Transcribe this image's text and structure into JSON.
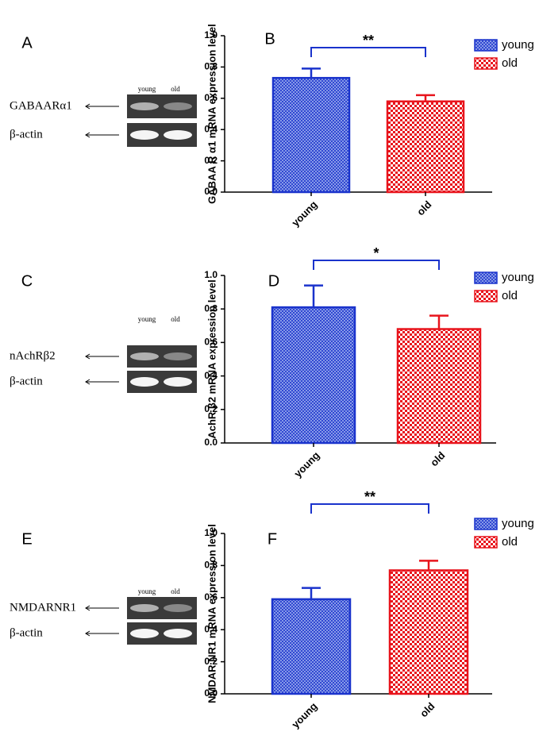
{
  "chart_data": [
    {
      "type": "bar",
      "panel": "B",
      "y_label": "GABAA R α1 mRNA expression level",
      "categories": [
        "young",
        "old"
      ],
      "values": [
        0.73,
        0.58
      ],
      "errors": [
        0.06,
        0.04
      ],
      "colors": [
        "#1a33cc",
        "#e8141c"
      ],
      "annotation": "**",
      "ylim": [
        0,
        1.0
      ],
      "yticks": [
        {
          "value": 0,
          "label": "0.0"
        },
        0.2,
        0.4,
        0.6,
        0.8,
        {
          "value": 1.0,
          "label": "1.0"
        }
      ]
    },
    {
      "type": "bar",
      "panel": "D",
      "y_label": "AchR β2 mRNA expression level",
      "categories": [
        "young",
        "old"
      ],
      "values": [
        0.81,
        0.68
      ],
      "errors": [
        0.13,
        0.08
      ],
      "colors": [
        "#1a33cc",
        "#e8141c"
      ],
      "annotation": "*",
      "ylim": [
        0,
        1.0
      ],
      "yticks": [
        {
          "value": 0,
          "label": "0.0"
        },
        0.2,
        0.4,
        0.6,
        0.8,
        {
          "value": 1.0,
          "label": "1.0"
        }
      ]
    },
    {
      "type": "bar",
      "panel": "F",
      "y_label": "NMDAR NR1 mRNA expression level",
      "categories": [
        "young",
        "old"
      ],
      "values": [
        0.59,
        0.77
      ],
      "errors": [
        0.07,
        0.06
      ],
      "colors": [
        "#1a33cc",
        "#e8141c"
      ],
      "annotation": "**",
      "ylim": [
        0,
        1.0
      ],
      "yticks": [
        {
          "value": 0,
          "label": "0.0"
        },
        0.2,
        0.4,
        0.6,
        0.8,
        {
          "value": 1.0,
          "label": "1.0"
        }
      ]
    }
  ],
  "gels": [
    {
      "panel": "A",
      "lanes": [
        "young",
        "old"
      ],
      "genes": [
        "GABAARα1",
        "β-actin"
      ]
    },
    {
      "panel": "C",
      "lanes": [
        "young",
        "old"
      ],
      "genes": [
        "nAchRβ2",
        "β-actin"
      ]
    },
    {
      "panel": "E",
      "lanes": [
        "young",
        "old"
      ],
      "genes": [
        "NMDARNR1",
        "β-actin"
      ]
    }
  ]
}
